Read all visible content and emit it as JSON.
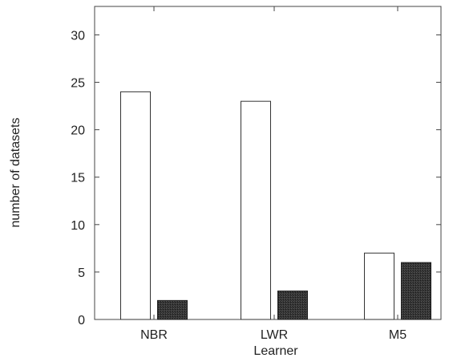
{
  "chart_data": {
    "type": "bar",
    "title": "",
    "xlabel": "Learner",
    "ylabel": "number of datasets",
    "categories": [
      "NBR",
      "LWR",
      "M5"
    ],
    "series": [
      {
        "values": [
          24,
          23,
          7
        ],
        "color": "#ffffff",
        "style": "outlined"
      },
      {
        "values": [
          2,
          3,
          6
        ],
        "color": "#2e2e2e",
        "style": "dark-textured"
      }
    ],
    "ylim": [
      0,
      33
    ],
    "yticks": [
      0,
      5,
      10,
      15,
      20,
      25,
      30
    ],
    "grid": false,
    "legend": "none"
  }
}
